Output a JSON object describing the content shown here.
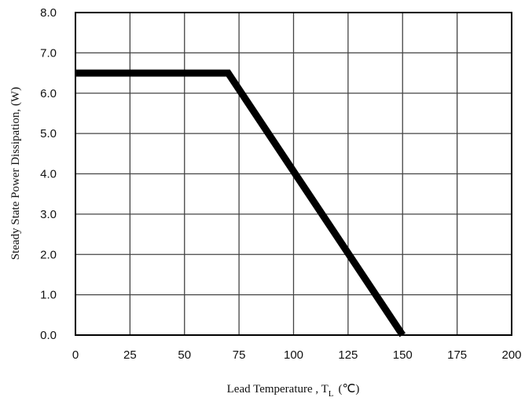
{
  "chart_data": {
    "type": "line",
    "xlabel": "Lead Temperature , T",
    "xlabel_subscript": "L",
    "xlabel_unit": "(℃)",
    "ylabel": "Steady State Power Dissipation, (W)",
    "xlim": [
      0,
      200
    ],
    "ylim": [
      0,
      8
    ],
    "xticks": [
      "0",
      "25",
      "50",
      "75",
      "100",
      "125",
      "150",
      "175",
      "200"
    ],
    "yticks": [
      "0.0",
      "1.0",
      "2.0",
      "3.0",
      "4.0",
      "5.0",
      "6.0",
      "7.0",
      "8.0"
    ],
    "grid": true,
    "series": [
      {
        "x": [
          0,
          70,
          150
        ],
        "y": [
          6.5,
          6.5,
          0
        ]
      }
    ],
    "colors": {
      "line": "#000000",
      "grid": "#444444",
      "frame": "#000000"
    }
  }
}
